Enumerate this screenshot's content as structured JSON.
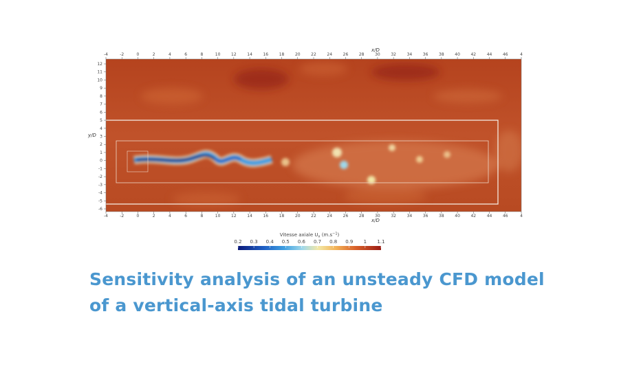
{
  "figure": {
    "x_axis_label": "x/D",
    "y_axis_label": "y/D",
    "x_ticks": [
      "-4",
      "-2",
      "0",
      "2",
      "4",
      "6",
      "8",
      "10",
      "12",
      "14",
      "16",
      "18",
      "20",
      "22",
      "24",
      "26",
      "28",
      "30",
      "32",
      "34",
      "36",
      "38",
      "40",
      "42",
      "44",
      "46",
      "4"
    ],
    "y_ticks": [
      "12",
      "11",
      "10",
      "9",
      "8",
      "7",
      "6",
      "5",
      "4",
      "3",
      "2",
      "1",
      "0",
      "-1",
      "-2",
      "-3",
      "-4",
      "-5",
      "-6"
    ],
    "colorbar": {
      "label": "Vitesse axiale U",
      "label_sub": "x",
      "label_unit": " (m.s",
      "label_exp": "−1",
      "label_close": ")",
      "ticks": [
        "0.2",
        "0.3",
        "0.4",
        "0.5",
        "0.6",
        "0.7",
        "0.8",
        "0.9",
        "1",
        "1.1"
      ],
      "colormap": [
        "#0b1a7a",
        "#1f5fc4",
        "#3f9ee0",
        "#9fd8ea",
        "#f2e8a8",
        "#f3b55a",
        "#d9622a",
        "#9b1c14"
      ]
    }
  },
  "title": {
    "line1": "Sensitivity analysis of an unsteady CFD model",
    "line2": "of a vertical-axis tidal turbine",
    "color": "#4a97cf"
  }
}
